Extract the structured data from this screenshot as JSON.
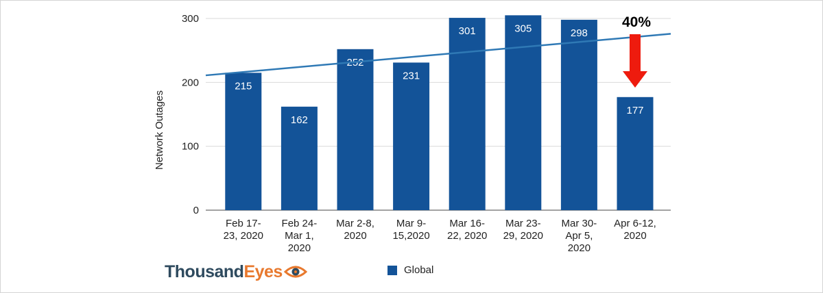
{
  "chart_data": {
    "type": "bar",
    "categories": [
      [
        "Feb 17-",
        "23, 2020"
      ],
      [
        "Feb 24-",
        "Mar 1,",
        "2020"
      ],
      [
        "Mar 2-8,",
        "2020"
      ],
      [
        "Mar 9-",
        "15,2020"
      ],
      [
        "Mar 16-",
        "22, 2020"
      ],
      [
        "Mar 23-",
        "29, 2020"
      ],
      [
        "Mar 30-",
        "Apr 5,",
        "2020"
      ],
      [
        "Apr 6-12,",
        "2020"
      ]
    ],
    "series": [
      {
        "name": "Global",
        "values": [
          215,
          162,
          252,
          231,
          301,
          305,
          298,
          177
        ]
      }
    ],
    "trendline": {
      "start": 211,
      "end": 276
    },
    "ylabel": "Network Outages",
    "ylim": [
      0,
      300
    ],
    "yticks": [
      0,
      100,
      200,
      300
    ],
    "grid": true,
    "legend_position": "bottom",
    "annotation": {
      "text": "40%",
      "arrow": "down",
      "target_index": 7
    }
  },
  "colors": {
    "bar": "#135398",
    "trend": "#2f79b5",
    "grid": "#d9d9d9",
    "arrow": "#ee1b0e"
  },
  "logo": {
    "part1": "Thousand",
    "part2": "Eyes"
  }
}
